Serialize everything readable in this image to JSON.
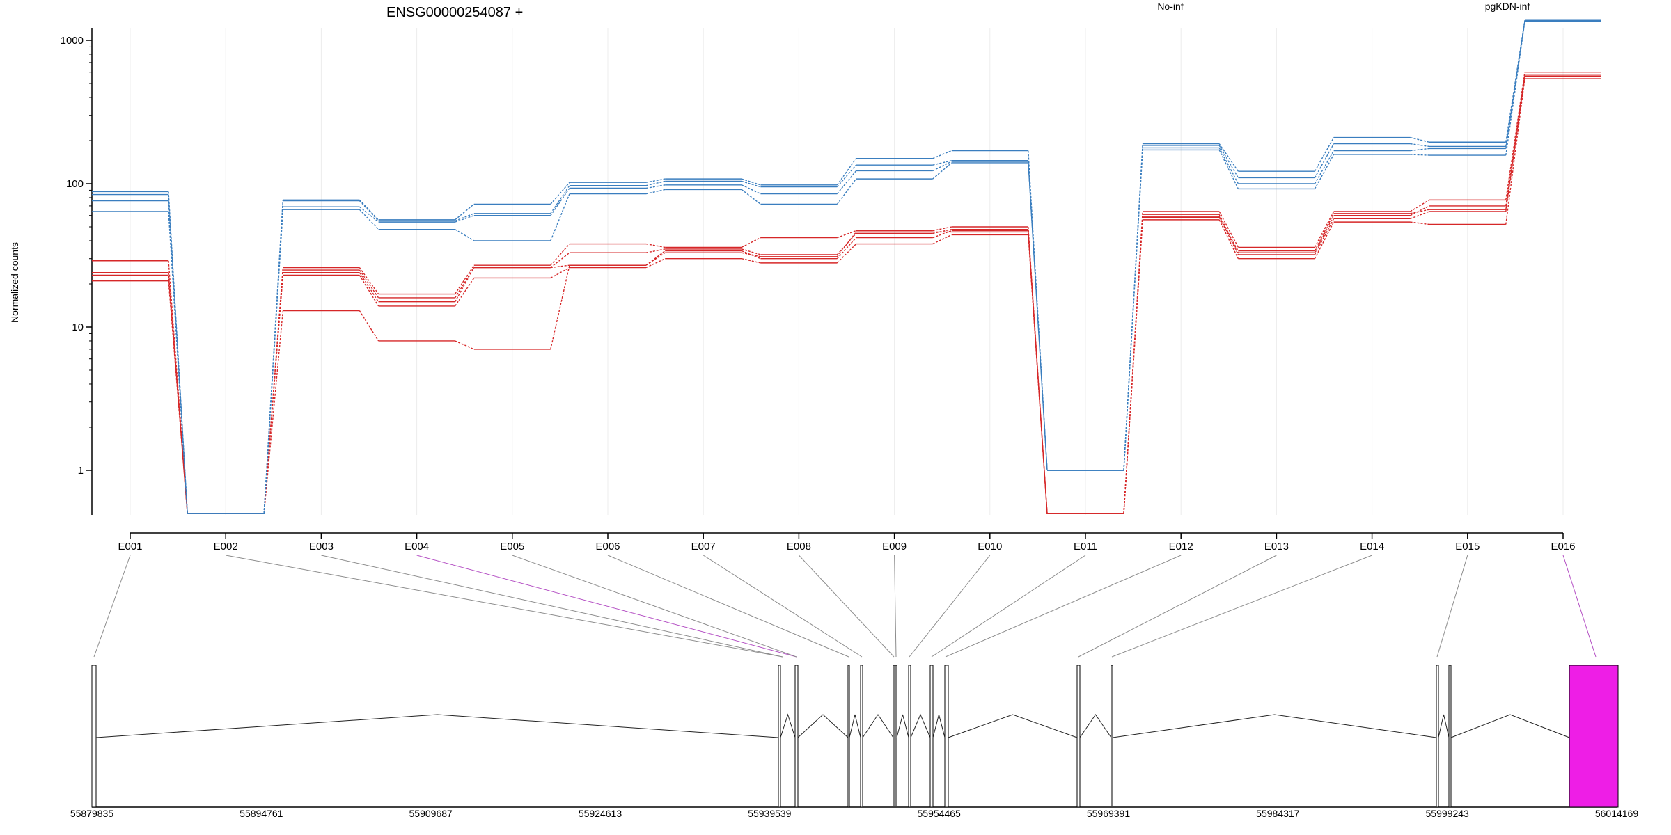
{
  "title": "ENSG00000254087 +",
  "legend": [
    {
      "name": "No-inf",
      "color": "#d62728"
    },
    {
      "name": "pgKDN-inf",
      "color": "#3a7ebf"
    }
  ],
  "chart_data": {
    "type": "line",
    "ylabel": "Normalized counts",
    "yscale": "log",
    "ylim": [
      0.5,
      1800
    ],
    "yticks": [
      "1",
      "10",
      "100",
      "1000"
    ],
    "grid": true,
    "legend_position": "top",
    "categories": [
      "E001",
      "E002",
      "E003",
      "E004",
      "E005",
      "E006",
      "E007",
      "E008",
      "E009",
      "E010",
      "E011",
      "E012",
      "E013",
      "E014",
      "E015",
      "E016"
    ],
    "series": [
      {
        "group": "No-inf",
        "values": [
          29,
          0.5,
          26,
          17,
          27,
          38,
          36,
          42,
          47,
          50,
          0.5,
          64,
          36,
          64,
          77,
          600
        ]
      },
      {
        "group": "No-inf",
        "values": [
          24,
          0.5,
          25,
          16,
          26,
          33,
          35,
          32,
          45,
          48,
          0.5,
          61,
          33,
          60,
          70,
          580
        ]
      },
      {
        "group": "No-inf",
        "values": [
          23,
          0.5,
          24,
          15,
          26,
          27,
          34,
          30,
          42,
          47,
          0.5,
          59,
          32,
          57,
          64,
          565
        ]
      },
      {
        "group": "No-inf",
        "values": [
          21,
          0.5,
          23,
          14,
          22,
          26,
          30,
          28,
          38,
          44,
          0.5,
          56,
          30,
          54,
          52,
          540
        ]
      },
      {
        "group": "No-inf",
        "values": [
          24,
          0.5,
          13,
          8,
          7,
          27,
          33,
          31,
          46,
          46,
          0.5,
          58,
          34,
          62,
          66,
          560
        ]
      },
      {
        "group": "pgKDN-inf",
        "values": [
          88,
          0.5,
          77,
          56,
          72,
          102,
          108,
          98,
          150,
          170,
          1,
          190,
          122,
          210,
          195,
          1380
        ]
      },
      {
        "group": "pgKDN-inf",
        "values": [
          84,
          0.5,
          76,
          55,
          62,
          97,
          104,
          95,
          135,
          145,
          1,
          185,
          110,
          190,
          182,
          1370
        ]
      },
      {
        "group": "pgKDN-inf",
        "values": [
          76,
          0.5,
          69,
          54,
          60,
          93,
          98,
          85,
          123,
          143,
          1,
          178,
          100,
          170,
          176,
          1360
        ]
      },
      {
        "group": "pgKDN-inf",
        "values": [
          64,
          0.5,
          66,
          48,
          40,
          85,
          91,
          72,
          108,
          140,
          1,
          172,
          92,
          160,
          158,
          1350
        ]
      }
    ]
  },
  "gene_model": {
    "coordinate_labels": [
      "55879835",
      "55894761",
      "55909687",
      "55924613",
      "55939539",
      "55954465",
      "55969391",
      "55984317",
      "55999243",
      "56014169"
    ],
    "highlight_exons": [
      "E004",
      "E016"
    ],
    "highlight_color": "#ee1ee6"
  }
}
